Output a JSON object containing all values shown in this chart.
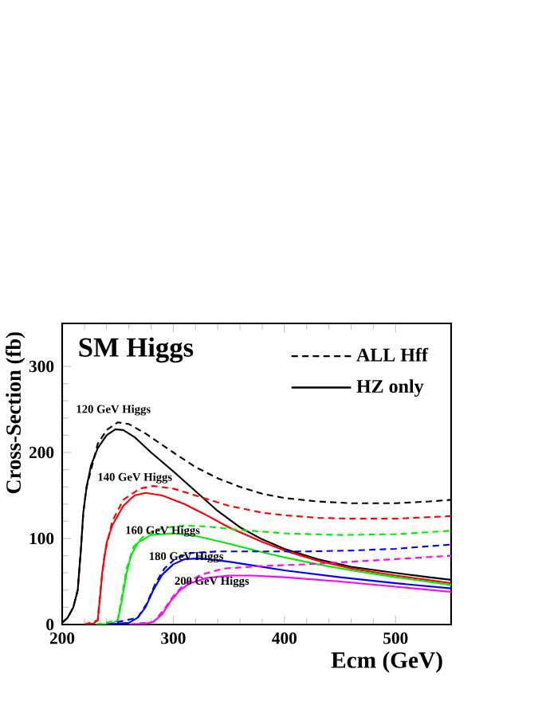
{
  "chart_data": {
    "type": "line",
    "title": "SM Higgs",
    "xlabel": "Ecm (GeV)",
    "ylabel": "Cross-Section (fb)",
    "xlim": [
      200,
      550
    ],
    "ylim": [
      0,
      350
    ],
    "xticks": [
      200,
      300,
      400,
      500
    ],
    "yticks": [
      0,
      100,
      200,
      300
    ],
    "legend": "top right",
    "grid": false,
    "marker": "none",
    "annotations": [
      "120 GeV Higgs",
      "140 GeV Higgs",
      "160 GeV Higgs",
      "180 GeV Higgs",
      "200 GeV Higgs"
    ],
    "series": [
      {
        "name": "ALL Hff",
        "color": "#000000",
        "line_style": "dashed",
        "x": [
          200,
          205,
          210,
          214,
          217,
          219,
          222,
          232,
          240,
          250,
          260,
          275,
          300,
          320,
          340,
          360,
          380,
          400,
          430,
          460,
          500,
          530,
          550
        ],
        "values": [
          2,
          8,
          20,
          40,
          90,
          130,
          160,
          210,
          226,
          235,
          233,
          222,
          200,
          183,
          170,
          160,
          152,
          147,
          143,
          141,
          141,
          143,
          145
        ]
      },
      {
        "name": "HZ only",
        "color": "#000000",
        "line_style": "solid",
        "x": [
          200,
          205,
          210,
          214,
          217,
          219,
          222,
          226,
          232,
          240,
          248,
          255,
          265,
          280,
          300,
          320,
          340,
          360,
          380,
          400,
          430,
          460,
          500,
          530,
          550
        ],
        "values": [
          2,
          8,
          20,
          40,
          90,
          130,
          160,
          185,
          205,
          220,
          227,
          226,
          218,
          200,
          178,
          155,
          132,
          113,
          99,
          88,
          76,
          67,
          60,
          55,
          52
        ]
      },
      {
        "color": "#ff0000",
        "line_style": "dashed",
        "x": [
          220,
          232,
          234,
          238,
          245,
          255,
          270,
          282,
          300,
          320,
          350,
          380,
          400,
          430,
          460,
          500,
          550
        ],
        "values": [
          0,
          5,
          35,
          80,
          120,
          145,
          158,
          161,
          158,
          150,
          138,
          130,
          127,
          124,
          123,
          123,
          126
        ]
      },
      {
        "color": "#ff0000",
        "line_style": "solid",
        "x": [
          220,
          228,
          232,
          234,
          236,
          240,
          245,
          255,
          265,
          275,
          290,
          310,
          330,
          350,
          380,
          400,
          430,
          460,
          500,
          550
        ],
        "values": [
          0,
          1,
          5,
          30,
          60,
          95,
          115,
          138,
          150,
          153,
          150,
          140,
          127,
          113,
          96,
          86,
          74,
          65,
          57,
          48
        ]
      },
      {
        "color": "#00ee00",
        "line_style": "dashed",
        "x": [
          230,
          250,
          254,
          258,
          264,
          275,
          290,
          310,
          330,
          360,
          400,
          450,
          500,
          550
        ],
        "values": [
          0,
          5,
          35,
          65,
          90,
          105,
          112,
          115,
          114,
          110,
          106,
          104,
          105,
          109
        ]
      },
      {
        "color": "#00ee00",
        "line_style": "solid",
        "x": [
          230,
          245,
          250,
          254,
          258,
          262,
          268,
          280,
          300,
          320,
          350,
          380,
          400,
          430,
          460,
          500,
          550
        ],
        "values": [
          0,
          1,
          5,
          30,
          60,
          80,
          95,
          104,
          106,
          103,
          94,
          84,
          78,
          70,
          63,
          55,
          46
        ]
      },
      {
        "color": "#0000ff",
        "line_style": "dashed",
        "x": [
          240,
          268,
          276,
          284,
          292,
          302,
          315,
          340,
          380,
          420,
          460,
          500,
          550
        ],
        "values": [
          0,
          8,
          24,
          48,
          65,
          77,
          83,
          85,
          85,
          85,
          86,
          88,
          93
        ]
      },
      {
        "color": "#0000ff",
        "line_style": "solid",
        "x": [
          240,
          260,
          268,
          275,
          282,
          290,
          300,
          310,
          325,
          350,
          380,
          400,
          450,
          500,
          550
        ],
        "values": [
          0,
          2,
          8,
          20,
          40,
          58,
          70,
          76,
          77,
          73,
          67,
          63,
          55,
          48,
          42
        ]
      },
      {
        "color": "#ff00ff",
        "line_style": "dashed",
        "x": [
          260,
          282,
          292,
          300,
          310,
          325,
          345,
          380,
          420,
          460,
          500,
          550
        ],
        "values": [
          0,
          3,
          18,
          33,
          47,
          58,
          65,
          68,
          70,
          73,
          76,
          80
        ]
      },
      {
        "color": "#ff00ff",
        "line_style": "solid",
        "x": [
          260,
          275,
          282,
          290,
          298,
          306,
          315,
          330,
          350,
          370,
          400,
          450,
          500,
          550
        ],
        "values": [
          0,
          1,
          3,
          12,
          28,
          40,
          48,
          54,
          57,
          57,
          55,
          50,
          44,
          38
        ]
      }
    ]
  }
}
